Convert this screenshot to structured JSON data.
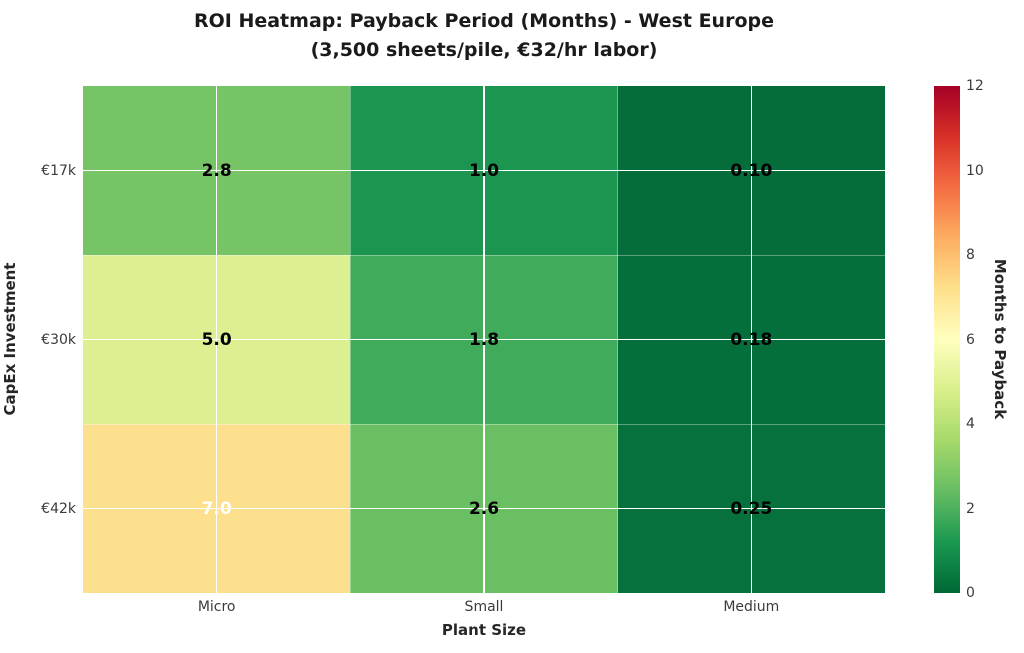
{
  "chart_data": {
    "type": "heatmap",
    "title": "ROI Heatmap: Payback Period (Months) - West Europe",
    "subtitle": "(3,500 sheets/pile, €32/hr labor)",
    "xlabel": "Plant Size",
    "ylabel": "CapEx Investment",
    "x_categories": [
      "Micro",
      "Small",
      "Medium"
    ],
    "y_categories": [
      "€17k",
      "€30k",
      "€42k"
    ],
    "values": [
      [
        2.8,
        1.0,
        0.1
      ],
      [
        5.0,
        1.8,
        0.18
      ],
      [
        7.0,
        2.6,
        0.25
      ]
    ],
    "cell_labels": [
      [
        "2.8",
        "1.0",
        "0.10"
      ],
      [
        "5.0",
        "1.8",
        "0.18"
      ],
      [
        "7.0",
        "2.6",
        "0.25"
      ]
    ],
    "cell_colors": [
      [
        "#76c466",
        "#1b9550",
        "#046d3a"
      ],
      [
        "#dcf092",
        "#41ab5c",
        "#056f3b"
      ],
      [
        "#fde08e",
        "#6abf62",
        "#06713c"
      ]
    ],
    "cell_text_colors": [
      [
        "#000000",
        "#000000",
        "#000000"
      ],
      [
        "#000000",
        "#000000",
        "#000000"
      ],
      [
        "#ffffff",
        "#000000",
        "#000000"
      ]
    ],
    "grid": true,
    "gridline_color": "#ffffff",
    "background": "#ffffff",
    "legend_position": "right",
    "colorbar": {
      "label": "Months to Payback",
      "min": 0,
      "max": 12,
      "ticks": [
        "12",
        "10",
        "8",
        "6",
        "4",
        "2",
        "0"
      ],
      "colormap": "RdYlGn_r",
      "gradient_top_to_bottom": [
        "#a50026",
        "#d73027",
        "#f46d43",
        "#fdae61",
        "#fee08b",
        "#ffffbf",
        "#d9ef8b",
        "#a6d96a",
        "#66bd63",
        "#1a9850",
        "#006837"
      ]
    }
  }
}
